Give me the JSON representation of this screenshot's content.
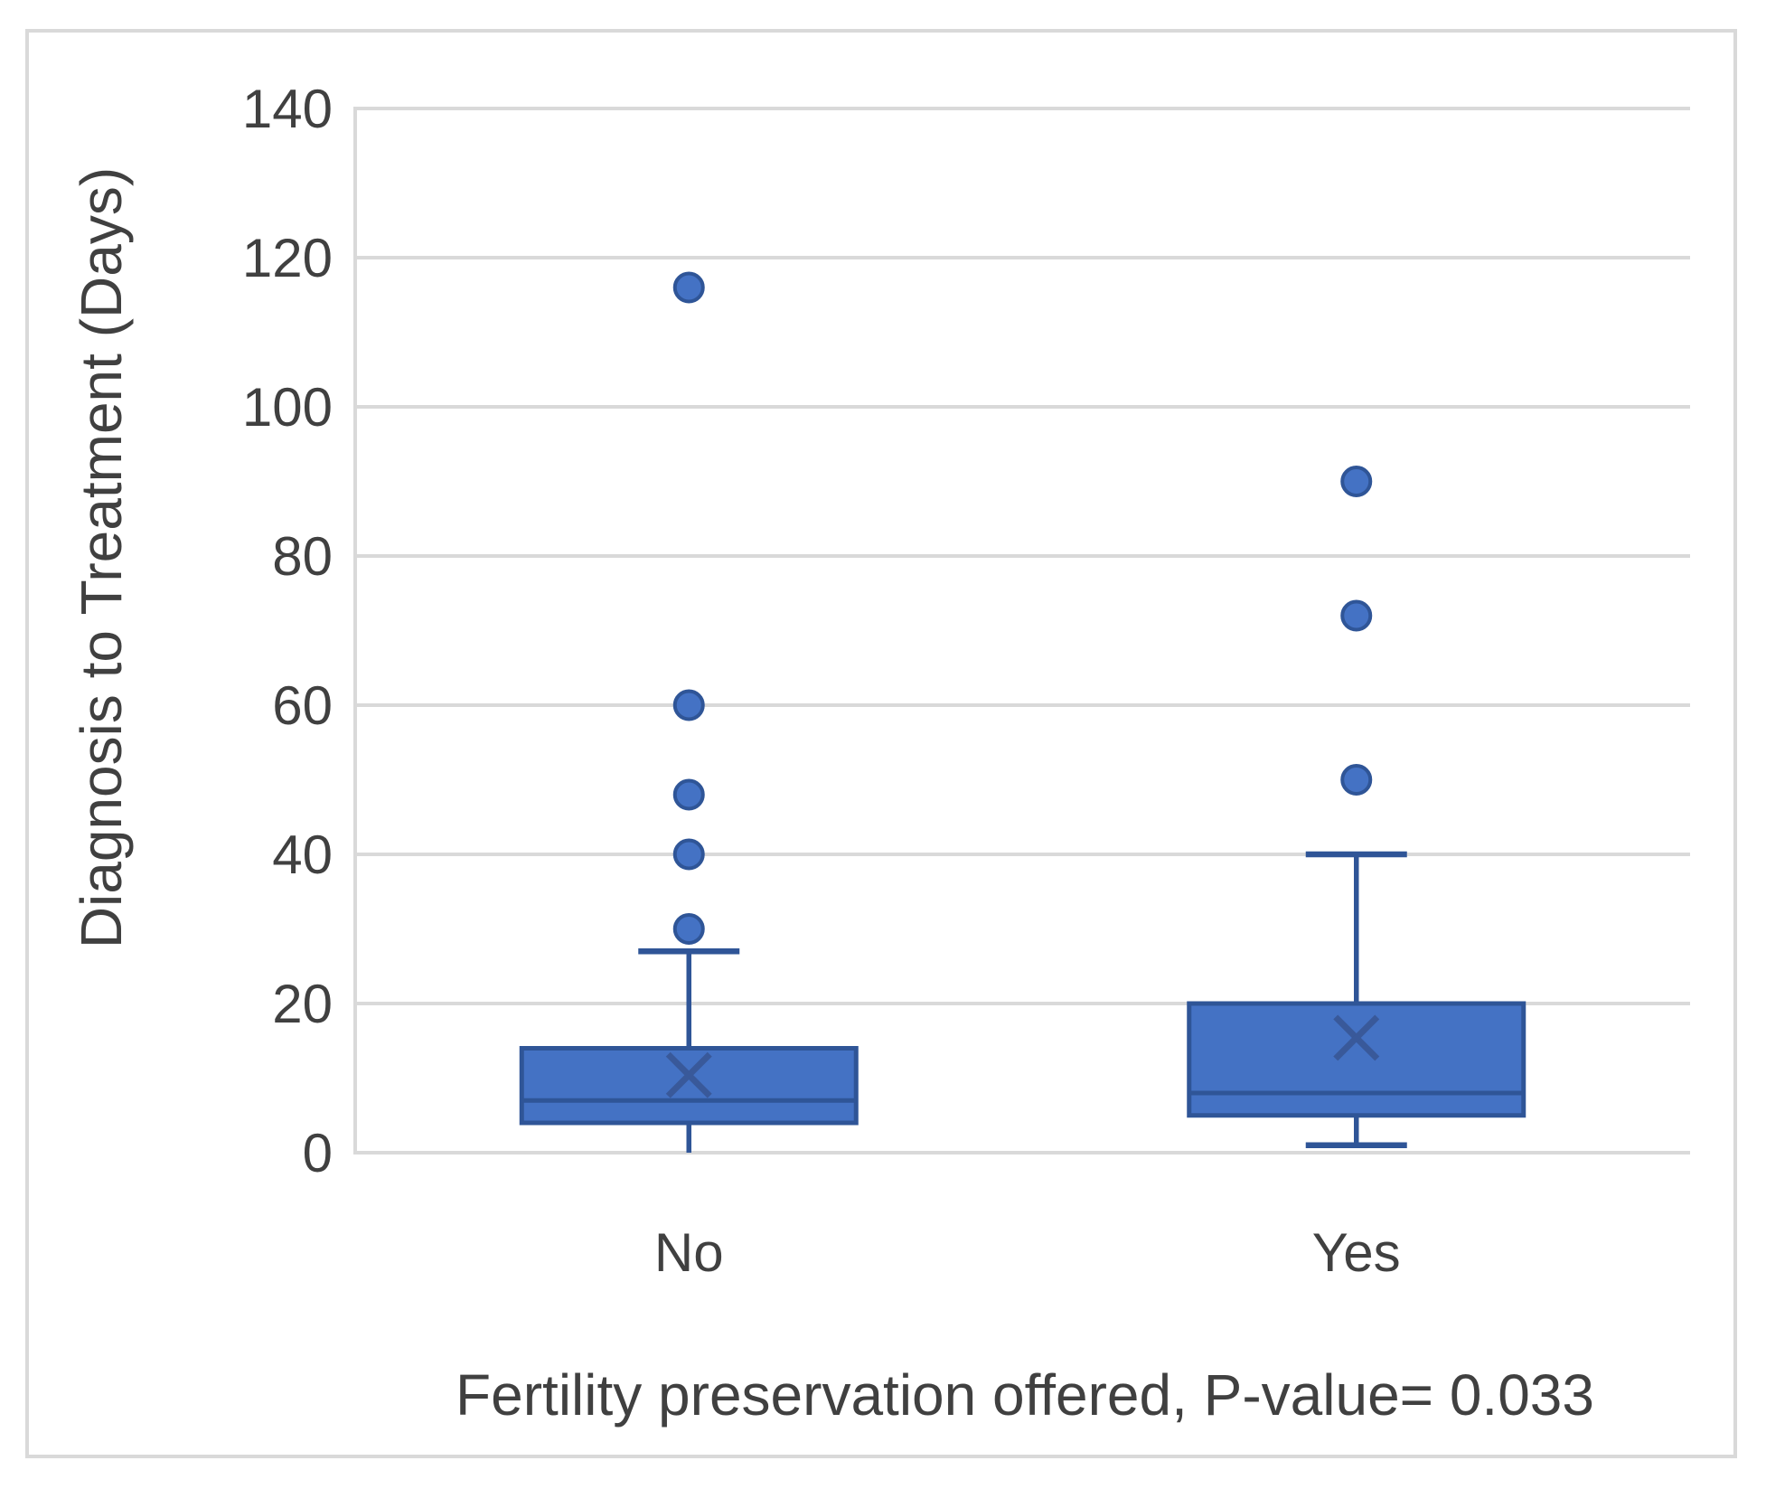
{
  "figure": {
    "background": "#FFFFFF",
    "frame_color": "#D9D9D9"
  },
  "chart_data": {
    "type": "boxplot",
    "title": "",
    "xlabel": "Fertility preservation offered, P-value= 0.033",
    "ylabel": "Diagnosis to Treatment  (Days)",
    "categories": [
      "No",
      "Yes"
    ],
    "y_axis": {
      "min": 0,
      "max": 140,
      "step": 20,
      "ticks": [
        0,
        20,
        40,
        60,
        80,
        100,
        120,
        140
      ]
    },
    "grid": true,
    "legend": false,
    "series": [
      {
        "category": "No",
        "whisker_low": 0,
        "q1": 4,
        "median": 7,
        "mean": 10.4,
        "q3": 14,
        "whisker_high": 27,
        "outliers": [
          30,
          40,
          48,
          60,
          116
        ],
        "cap_low": false,
        "cap_high": true
      },
      {
        "category": "Yes",
        "whisker_low": 1,
        "q1": 5,
        "median": 8,
        "mean": 15.4,
        "q3": 20,
        "whisker_high": 40,
        "outliers": [
          50,
          72,
          90
        ],
        "cap_low": true,
        "cap_high": true
      }
    ],
    "colors": {
      "box_fill": "#4472C4",
      "box_border": "#2F5597",
      "median_line": "#2F5597",
      "whisker": "#2F5597",
      "mean_marker": "#39599A",
      "outlier_fill": "#4472C4",
      "outlier_border": "#2F5597",
      "gridline": "#D9D9D9",
      "axis_line": "#D9D9D9",
      "text": "#404040"
    }
  }
}
